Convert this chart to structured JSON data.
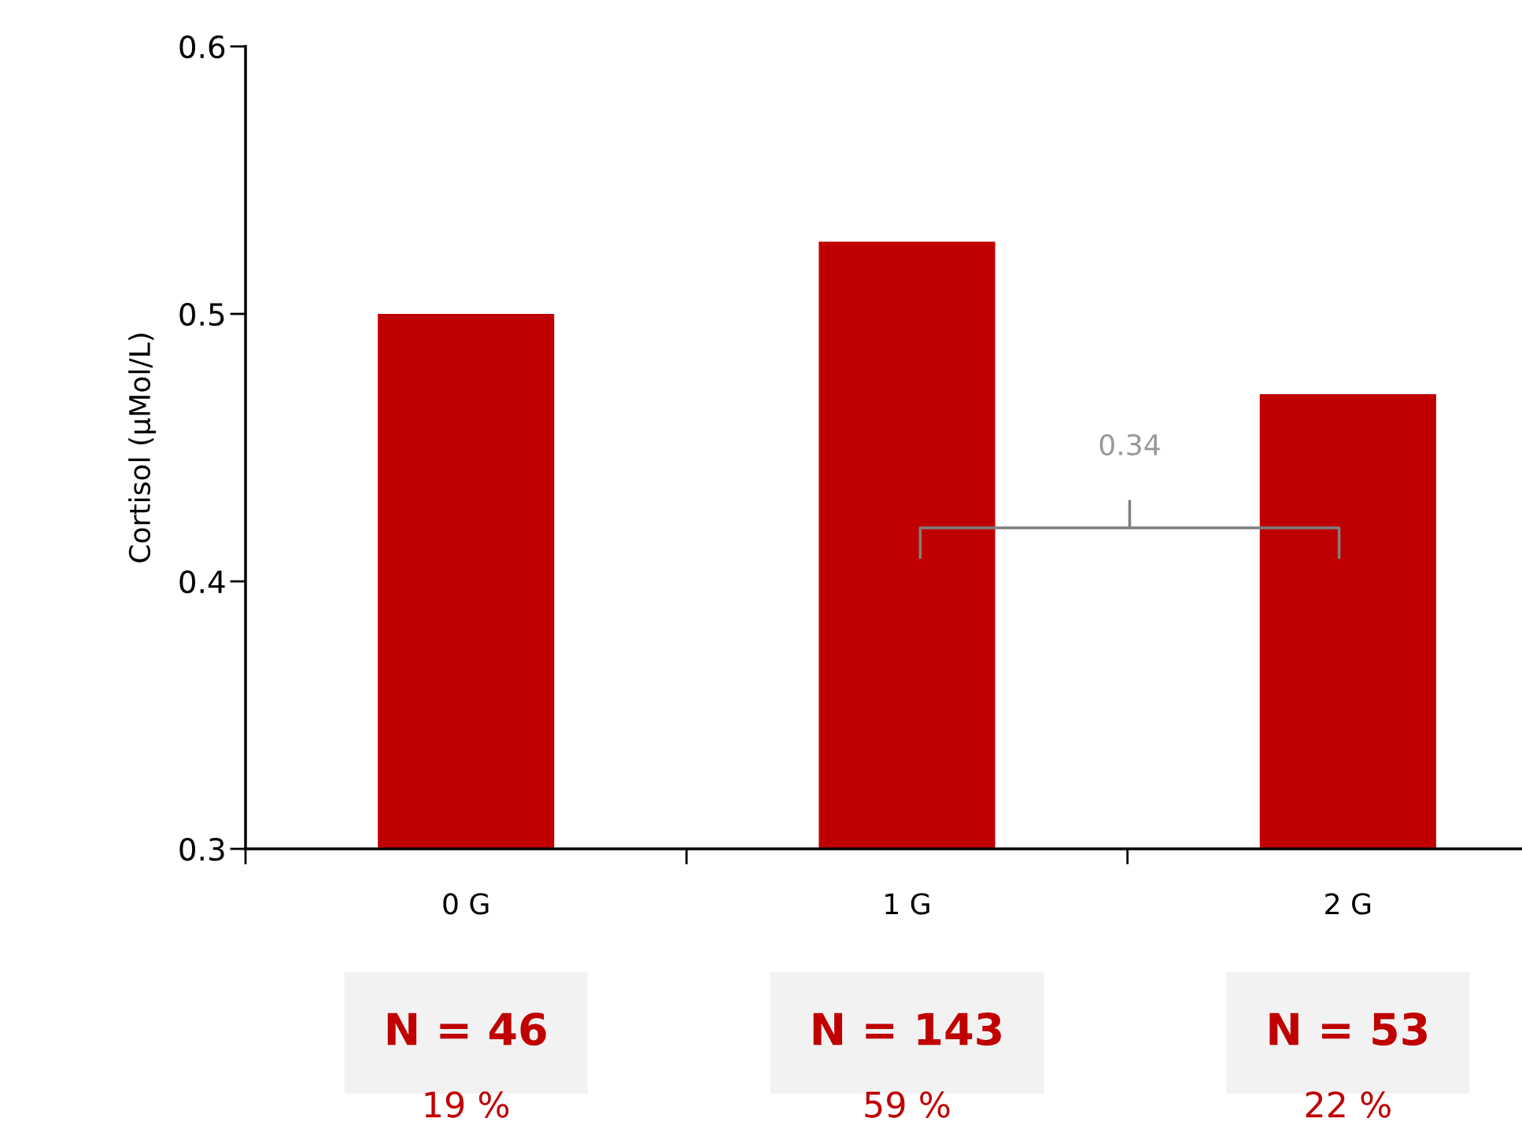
{
  "chart_data": {
    "type": "bar",
    "ylabel": "Cortisol (µMol/L)",
    "categories": [
      "0 G",
      "1 G",
      "2 G"
    ],
    "values": [
      0.5,
      0.527,
      0.47
    ],
    "color": "#c00000",
    "ylim": [
      0.3,
      0.6
    ],
    "yticks": [
      0.3,
      0.4,
      0.5,
      0.6
    ],
    "grid": false,
    "annotations": [
      "0.34",
      "N = 46",
      "19 %",
      "N = 143",
      "59 %",
      "N = 53",
      "22 %"
    ]
  }
}
